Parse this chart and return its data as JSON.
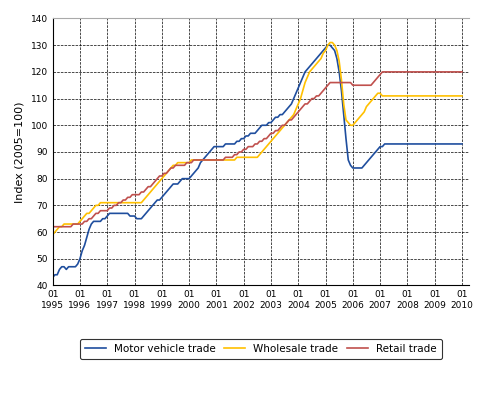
{
  "title": "",
  "ylabel": "Index (2005=100)",
  "ylim": [
    40,
    140
  ],
  "yticks": [
    40,
    50,
    60,
    70,
    80,
    90,
    100,
    110,
    120,
    130,
    140
  ],
  "background_color": "#ffffff",
  "start_year": 1995,
  "x_year_range": [
    1995,
    1996,
    1997,
    1998,
    1999,
    2000,
    2001,
    2002,
    2003,
    2004,
    2005,
    2006,
    2007,
    2008,
    2009,
    2010
  ],
  "motor_vehicle": [
    43,
    44,
    44,
    46,
    47,
    47,
    46,
    47,
    47,
    47,
    47,
    48,
    50,
    53,
    55,
    58,
    61,
    63,
    64,
    64,
    64,
    64,
    65,
    65,
    66,
    67,
    67,
    67,
    67,
    67,
    67,
    67,
    67,
    67,
    66,
    66,
    66,
    65,
    65,
    65,
    66,
    67,
    68,
    69,
    70,
    71,
    72,
    72,
    73,
    74,
    75,
    76,
    77,
    78,
    78,
    78,
    79,
    80,
    80,
    80,
    80,
    81,
    82,
    83,
    84,
    86,
    87,
    88,
    89,
    90,
    91,
    92,
    92,
    92,
    92,
    92,
    93,
    93,
    93,
    93,
    93,
    94,
    94,
    95,
    95,
    96,
    96,
    97,
    97,
    97,
    98,
    99,
    100,
    100,
    100,
    101,
    101,
    102,
    103,
    103,
    104,
    104,
    105,
    106,
    107,
    108,
    110,
    112,
    114,
    116,
    118,
    120,
    121,
    122,
    123,
    124,
    125,
    126,
    127,
    128,
    129,
    130,
    130,
    129,
    128,
    125,
    120,
    113,
    104,
    95,
    87,
    85,
    84,
    84,
    84,
    84,
    84,
    85,
    86,
    87,
    88,
    89,
    90,
    91,
    92,
    92,
    93,
    93,
    93,
    93,
    93,
    93,
    93,
    93,
    93,
    93,
    93,
    93,
    93,
    93,
    93,
    93,
    93,
    93,
    93,
    93,
    93,
    93,
    93,
    93,
    93,
    93,
    93,
    93,
    93,
    93,
    93,
    93,
    93,
    93,
    93,
    93,
    93,
    93,
    93,
    93
  ],
  "wholesale": [
    59,
    60,
    61,
    62,
    62,
    63,
    63,
    63,
    63,
    63,
    63,
    63,
    64,
    65,
    66,
    67,
    67,
    68,
    69,
    70,
    70,
    71,
    71,
    71,
    71,
    71,
    71,
    71,
    71,
    71,
    71,
    71,
    71,
    71,
    71,
    71,
    71,
    71,
    71,
    71,
    72,
    73,
    74,
    75,
    76,
    77,
    78,
    79,
    80,
    81,
    82,
    83,
    84,
    85,
    85,
    86,
    86,
    86,
    86,
    86,
    86,
    87,
    87,
    87,
    87,
    87,
    87,
    87,
    87,
    87,
    87,
    87,
    87,
    87,
    87,
    87,
    87,
    87,
    87,
    87,
    87,
    88,
    88,
    88,
    88,
    88,
    88,
    88,
    88,
    88,
    88,
    89,
    90,
    91,
    92,
    93,
    94,
    95,
    96,
    97,
    98,
    99,
    100,
    101,
    102,
    103,
    104,
    106,
    108,
    110,
    113,
    116,
    118,
    120,
    121,
    122,
    123,
    124,
    125,
    127,
    128,
    130,
    131,
    131,
    130,
    128,
    124,
    117,
    108,
    102,
    101,
    100,
    100,
    101,
    102,
    103,
    104,
    105,
    107,
    108,
    109,
    110,
    111,
    112,
    112,
    111,
    111,
    111,
    111,
    111,
    111,
    111,
    111,
    111,
    111,
    111,
    111,
    111,
    111,
    111,
    111,
    111,
    111,
    111,
    111,
    111,
    111,
    111,
    111,
    111,
    111,
    111,
    111,
    111,
    111,
    111,
    111,
    111,
    111,
    111,
    111,
    111,
    111,
    111,
    111,
    111
  ],
  "retail": [
    62,
    62,
    62,
    62,
    62,
    62,
    62,
    62,
    62,
    63,
    63,
    63,
    63,
    63,
    64,
    64,
    65,
    65,
    66,
    67,
    67,
    68,
    68,
    68,
    68,
    69,
    69,
    70,
    70,
    71,
    71,
    72,
    72,
    73,
    73,
    74,
    74,
    74,
    74,
    75,
    75,
    76,
    77,
    77,
    78,
    79,
    80,
    81,
    81,
    82,
    82,
    83,
    84,
    84,
    85,
    85,
    85,
    85,
    85,
    86,
    86,
    86,
    87,
    87,
    87,
    87,
    87,
    87,
    87,
    87,
    87,
    87,
    87,
    87,
    87,
    87,
    88,
    88,
    88,
    88,
    89,
    89,
    90,
    90,
    91,
    91,
    92,
    92,
    92,
    93,
    93,
    94,
    94,
    95,
    95,
    96,
    97,
    97,
    98,
    98,
    99,
    100,
    100,
    101,
    102,
    102,
    103,
    104,
    105,
    106,
    107,
    108,
    108,
    109,
    110,
    110,
    111,
    111,
    112,
    113,
    114,
    115,
    116,
    116,
    116,
    116,
    116,
    116,
    116,
    116,
    116,
    116,
    115,
    115,
    115,
    115,
    115,
    115,
    115,
    115,
    115,
    116,
    117,
    118,
    119,
    120,
    120,
    120,
    120,
    120,
    120,
    120,
    120,
    120,
    120,
    120,
    120,
    120,
    120,
    120,
    120,
    120,
    120,
    120,
    120,
    120,
    120,
    120,
    120,
    120,
    120,
    120,
    120,
    120,
    120,
    120,
    120,
    120,
    120,
    120,
    120,
    120,
    120,
    120,
    120,
    120
  ],
  "motor_color": "#1f4e9e",
  "wholesale_color": "#ffc000",
  "retail_color": "#c0504d",
  "legend_labels": [
    "Motor vehicle trade",
    "Wholesale trade",
    "Retail trade"
  ]
}
